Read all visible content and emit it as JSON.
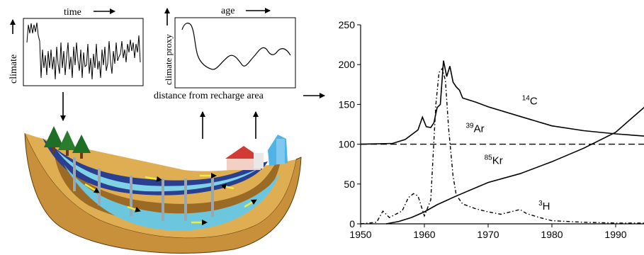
{
  "schematic": {
    "time_label": "time",
    "climate_label": "climate",
    "age_label": "age",
    "climate_proxy_label": "climate proxy",
    "distance_label": "distance from recharge area"
  },
  "chart_data": {
    "type": "line",
    "x_ticks": [
      "1950",
      "1960",
      "1970",
      "1980",
      "1990"
    ],
    "y_ticks": [
      "0",
      "50",
      "100",
      "150",
      "200",
      "250"
    ],
    "xlim": [
      1950,
      1995
    ],
    "ylim": [
      0,
      250
    ],
    "grid": false,
    "series_labels": {
      "c14": {
        "prefix": "14",
        "name": "C"
      },
      "ar39": {
        "prefix": "39",
        "name": "Ar"
      },
      "kr85": {
        "prefix": "85",
        "name": "Kr"
      },
      "h3": {
        "prefix": "3",
        "name": "H"
      }
    },
    "series": [
      {
        "key": "c14",
        "style": "solid",
        "x": [
          1950,
          1955,
          1957,
          1959,
          1959.7,
          1960.3,
          1961,
          1961.5,
          1962,
          1962.5,
          1963,
          1963.5,
          1964,
          1964.5,
          1965,
          1965.5,
          1966,
          1968,
          1970,
          1975,
          1980,
          1985,
          1990,
          1995
        ],
        "y": [
          100,
          101,
          106,
          118,
          134,
          122,
          121,
          127,
          146,
          150,
          205,
          185,
          198,
          178,
          172,
          168,
          158,
          153,
          147,
          135,
          123,
          117,
          113,
          110
        ]
      },
      {
        "key": "ar39",
        "style": "dashed",
        "x": [
          1950,
          1995
        ],
        "y": [
          100,
          100
        ]
      },
      {
        "key": "kr85",
        "style": "solid",
        "x": [
          1954,
          1956,
          1958,
          1960,
          1962,
          1965,
          1970,
          1975,
          1980,
          1985,
          1990,
          1995
        ],
        "y": [
          0,
          3,
          8,
          15,
          24,
          35,
          52,
          63,
          78,
          95,
          115,
          150
        ]
      },
      {
        "key": "h3",
        "style": "dashdot",
        "x": [
          1950,
          1952.5,
          1953.5,
          1954.5,
          1955.5,
          1956.5,
          1957.5,
          1958.3,
          1959,
          1960,
          1961,
          1961.8,
          1962.3,
          1962.8,
          1963.3,
          1963.8,
          1964.5,
          1965,
          1966,
          1968,
          1970,
          1972,
          1974,
          1975,
          1976,
          1978,
          1980,
          1985,
          1990,
          1995
        ],
        "y": [
          0,
          2,
          16,
          8,
          12,
          16,
          33,
          38,
          35,
          10,
          30,
          150,
          190,
          195,
          180,
          120,
          60,
          36,
          25,
          19,
          15,
          12,
          16,
          18,
          13,
          8,
          4,
          2,
          1,
          1
        ]
      }
    ]
  }
}
